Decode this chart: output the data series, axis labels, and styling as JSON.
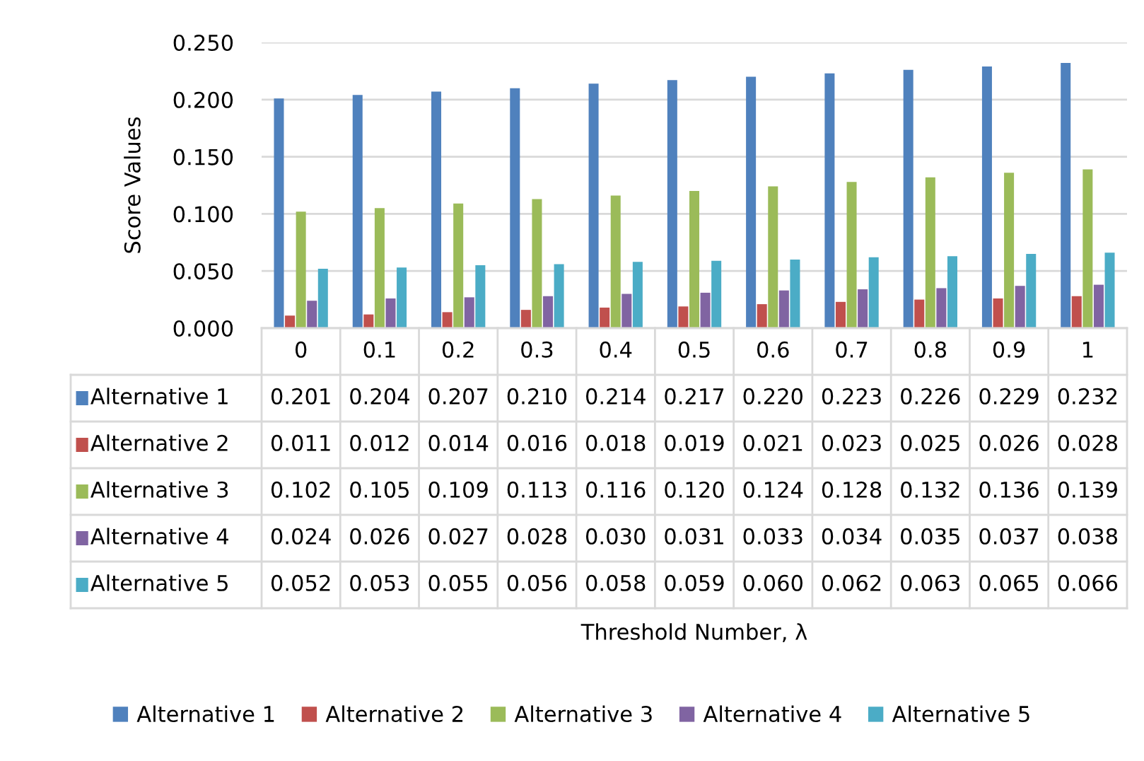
{
  "chart_data": {
    "type": "bar",
    "ylabel": "Score Values",
    "annotations": [
      "Threshold Number, λ"
    ],
    "categories": [
      "0",
      "0.1",
      "0.2",
      "0.3",
      "0.4",
      "0.5",
      "0.6",
      "0.7",
      "0.8",
      "0.9",
      "1"
    ],
    "series": [
      {
        "name": "Alternative 1",
        "color": "#4f81bd",
        "values": [
          0.201,
          0.204,
          0.207,
          0.21,
          0.214,
          0.217,
          0.22,
          0.223,
          0.226,
          0.229,
          0.232
        ],
        "value_labels": [
          "0.201",
          "0.204",
          "0.207",
          "0.210",
          "0.214",
          "0.217",
          "0.220",
          "0.223",
          "0.226",
          "0.229",
          "0.232"
        ]
      },
      {
        "name": "Alternative 2",
        "color": "#c0504d",
        "values": [
          0.011,
          0.012,
          0.014,
          0.016,
          0.018,
          0.019,
          0.021,
          0.023,
          0.025,
          0.026,
          0.028
        ],
        "value_labels": [
          "0.011",
          "0.012",
          "0.014",
          "0.016",
          "0.018",
          "0.019",
          "0.021",
          "0.023",
          "0.025",
          "0.026",
          "0.028"
        ]
      },
      {
        "name": "Alternative 3",
        "color": "#9bbb59",
        "values": [
          0.102,
          0.105,
          0.109,
          0.113,
          0.116,
          0.12,
          0.124,
          0.128,
          0.132,
          0.136,
          0.139
        ],
        "value_labels": [
          "0.102",
          "0.105",
          "0.109",
          "0.113",
          "0.116",
          "0.120",
          "0.124",
          "0.128",
          "0.132",
          "0.136",
          "0.139"
        ]
      },
      {
        "name": "Alternative 4",
        "color": "#8064a2",
        "values": [
          0.024,
          0.026,
          0.027,
          0.028,
          0.03,
          0.031,
          0.033,
          0.034,
          0.035,
          0.037,
          0.038
        ],
        "value_labels": [
          "0.024",
          "0.026",
          "0.027",
          "0.028",
          "0.030",
          "0.031",
          "0.033",
          "0.034",
          "0.035",
          "0.037",
          "0.038"
        ]
      },
      {
        "name": "Alternative 5",
        "color": "#4bacc6",
        "values": [
          0.052,
          0.053,
          0.055,
          0.056,
          0.058,
          0.059,
          0.06,
          0.062,
          0.063,
          0.065,
          0.066
        ],
        "value_labels": [
          "0.052",
          "0.053",
          "0.055",
          "0.056",
          "0.058",
          "0.059",
          "0.060",
          "0.062",
          "0.063",
          "0.065",
          "0.066"
        ]
      }
    ],
    "ylim": [
      0,
      0.25
    ],
    "yticks": [
      {
        "value": 0,
        "label": "0.000"
      },
      {
        "value": 0.05,
        "label": "0.050"
      },
      {
        "value": 0.1,
        "label": "0.100"
      },
      {
        "value": 0.15,
        "label": "0.150"
      },
      {
        "value": 0.2,
        "label": "0.200"
      },
      {
        "value": 0.25,
        "label": "0.250"
      }
    ],
    "grid": "y",
    "legend": "bottom"
  }
}
